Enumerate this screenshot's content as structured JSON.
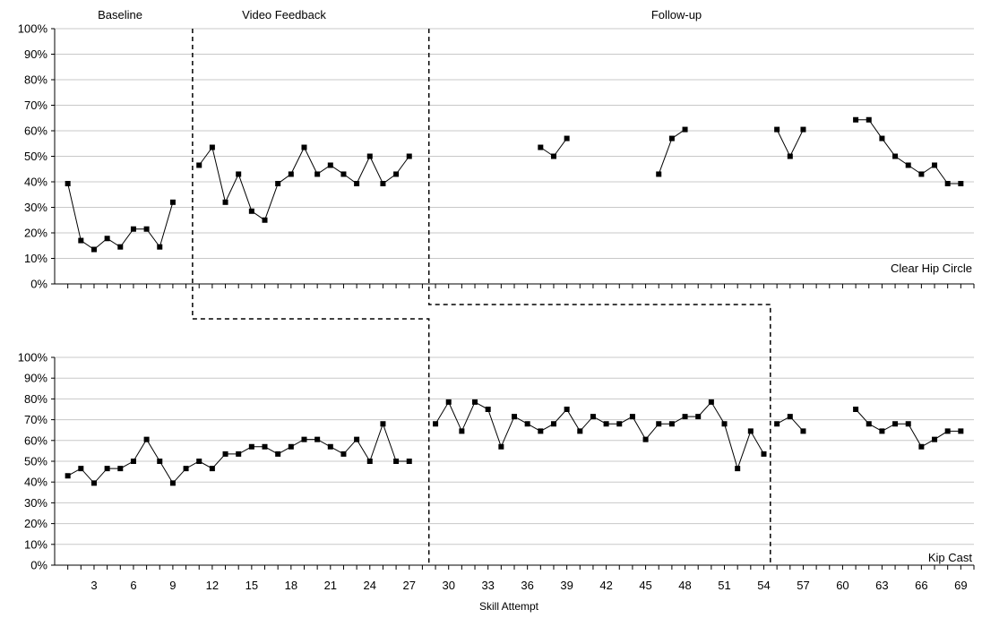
{
  "chart_data": {
    "type": "line",
    "xlabel": "Skill Attempt",
    "x_tick_labels": [
      "3",
      "6",
      "9",
      "12",
      "15",
      "18",
      "21",
      "24",
      "27",
      "30",
      "33",
      "36",
      "39",
      "42",
      "45",
      "48",
      "51",
      "54",
      "57",
      "60",
      "63",
      "66",
      "69"
    ],
    "x_ticks": [
      3,
      6,
      9,
      12,
      15,
      18,
      21,
      24,
      27,
      30,
      33,
      36,
      39,
      42,
      45,
      48,
      51,
      54,
      57,
      60,
      63,
      66,
      69
    ],
    "xlim": [
      0,
      70
    ],
    "ylim": [
      0,
      100
    ],
    "y_tick_labels": [
      "0%",
      "10%",
      "20%",
      "30%",
      "40%",
      "50%",
      "60%",
      "70%",
      "80%",
      "90%",
      "100%"
    ],
    "y_ticks": [
      0,
      10,
      20,
      30,
      40,
      50,
      60,
      70,
      80,
      90,
      100
    ],
    "phase_labels": [
      "Baseline",
      "Video Feedback",
      "Follow-up"
    ],
    "panels": [
      {
        "label": "Clear Hip Circle",
        "phase_change_after": [
          10.5,
          28.5
        ],
        "segments": [
          [
            [
              1,
              39.3
            ],
            [
              2,
              17
            ],
            [
              3,
              13.5
            ],
            [
              4,
              17.8
            ],
            [
              5,
              14.5
            ],
            [
              6,
              21.5
            ],
            [
              7,
              21.5
            ],
            [
              8,
              14.5
            ],
            [
              9,
              32
            ]
          ],
          [
            [
              11,
              46.5
            ],
            [
              12,
              53.5
            ],
            [
              13,
              32
            ],
            [
              14,
              43
            ],
            [
              15,
              28.5
            ],
            [
              16,
              25
            ],
            [
              17,
              39.3
            ],
            [
              18,
              43
            ],
            [
              19,
              53.5
            ],
            [
              20,
              43
            ],
            [
              21,
              46.5
            ],
            [
              22,
              43
            ],
            [
              23,
              39.3
            ],
            [
              24,
              50
            ],
            [
              25,
              39.3
            ],
            [
              26,
              43
            ],
            [
              27,
              50
            ]
          ],
          [
            [
              37,
              53.5
            ],
            [
              38,
              50
            ],
            [
              39,
              57
            ]
          ],
          [
            [
              46,
              43
            ],
            [
              47,
              57
            ],
            [
              48,
              60.5
            ]
          ],
          [
            [
              55,
              60.5
            ],
            [
              56,
              50
            ],
            [
              57,
              60.5
            ]
          ],
          [
            [
              61,
              64.3
            ],
            [
              62,
              64.3
            ],
            [
              63,
              57
            ],
            [
              64,
              50
            ],
            [
              65,
              46.5
            ],
            [
              66,
              43
            ],
            [
              67,
              46.5
            ],
            [
              68,
              39.3
            ],
            [
              69,
              39.3
            ]
          ]
        ]
      },
      {
        "label": "Kip Cast",
        "phase_change_after": [
          28.5,
          54.5
        ],
        "segments": [
          [
            [
              1,
              43
            ],
            [
              2,
              46.5
            ],
            [
              3,
              39.5
            ],
            [
              4,
              46.5
            ],
            [
              5,
              46.5
            ],
            [
              6,
              50
            ],
            [
              7,
              60.5
            ],
            [
              8,
              50
            ],
            [
              9,
              39.5
            ],
            [
              10,
              46.5
            ],
            [
              11,
              50
            ],
            [
              12,
              46.5
            ],
            [
              13,
              53.5
            ],
            [
              14,
              53.5
            ],
            [
              15,
              57
            ],
            [
              16,
              57
            ],
            [
              17,
              53.5
            ],
            [
              18,
              57
            ],
            [
              19,
              60.5
            ],
            [
              20,
              60.5
            ],
            [
              21,
              57
            ],
            [
              22,
              53.5
            ],
            [
              23,
              60.5
            ],
            [
              24,
              50
            ],
            [
              25,
              68
            ],
            [
              26,
              50
            ],
            [
              27,
              50
            ]
          ],
          [
            [
              29,
              68
            ],
            [
              30,
              78.5
            ],
            [
              31,
              64.5
            ],
            [
              32,
              78.5
            ],
            [
              33,
              75
            ],
            [
              34,
              57
            ],
            [
              35,
              71.5
            ],
            [
              36,
              68
            ],
            [
              37,
              64.5
            ],
            [
              38,
              68
            ],
            [
              39,
              75
            ],
            [
              40,
              64.5
            ],
            [
              41,
              71.5
            ],
            [
              42,
              68
            ],
            [
              43,
              68
            ],
            [
              44,
              71.5
            ],
            [
              45,
              60.5
            ],
            [
              46,
              68
            ],
            [
              47,
              68
            ],
            [
              48,
              71.5
            ],
            [
              49,
              71.5
            ],
            [
              50,
              78.5
            ],
            [
              51,
              68
            ],
            [
              52,
              46.5
            ],
            [
              53,
              64.5
            ],
            [
              54,
              53.5
            ]
          ],
          [
            [
              55,
              68
            ],
            [
              56,
              71.5
            ],
            [
              57,
              64.5
            ]
          ],
          [
            [
              61,
              75
            ],
            [
              62,
              68
            ],
            [
              63,
              64.5
            ],
            [
              64,
              68
            ],
            [
              65,
              68
            ],
            [
              66,
              57
            ],
            [
              67,
              60.5
            ],
            [
              68,
              64.5
            ],
            [
              69,
              64.5
            ]
          ]
        ]
      }
    ]
  }
}
